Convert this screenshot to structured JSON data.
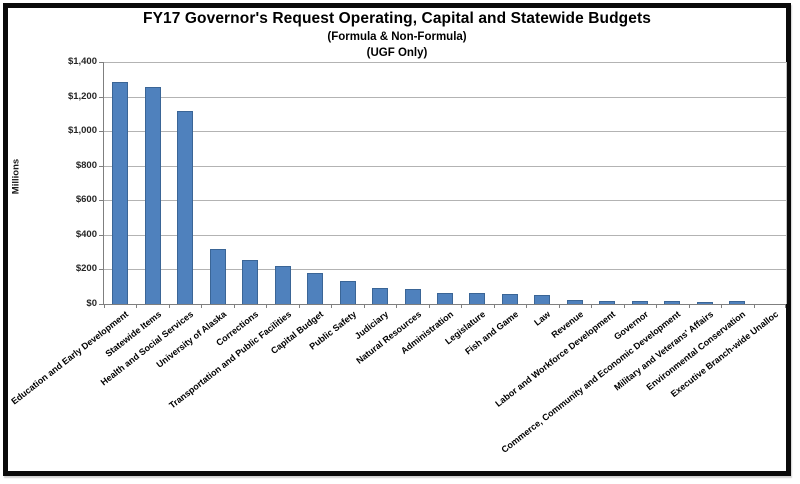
{
  "chart_data": {
    "type": "bar",
    "title": "FY17 Governor's Request Operating, Capital and Statewide Budgets",
    "subtitle1": "(Formula & Non-Formula)",
    "subtitle2": "(UGF Only)",
    "ylabel": "Millions",
    "ylim": [
      0,
      1400
    ],
    "ytick_interval": 200,
    "yticks": [
      {
        "value": 0,
        "label": "$0"
      },
      {
        "value": 200,
        "label": "$200"
      },
      {
        "value": 400,
        "label": "$400"
      },
      {
        "value": 600,
        "label": "$600"
      },
      {
        "value": 800,
        "label": "$800"
      },
      {
        "value": 1000,
        "label": "$1,000"
      },
      {
        "value": 1200,
        "label": "$1,200"
      },
      {
        "value": 1400,
        "label": "$1,400"
      }
    ],
    "grid": true,
    "legend": "none",
    "bar_color": "#4f81bd",
    "bar_border_color": "#3a6596",
    "units": "millions of dollars (UGF)",
    "categories": [
      "Education and Early Development",
      "Statewide Items",
      "Health and Social Services",
      "University of Alaska",
      "Corrections",
      "Transportation and Public Facilities",
      "Capital Budget",
      "Public Safety",
      "Judiciary",
      "Natural Resources",
      "Administration",
      "Legislature",
      "Fish and Game",
      "Law",
      "Revenue",
      "Labor and Workforce Development",
      "Governor",
      "Commerce, Community and Economic Development",
      "Military and Veterans' Affairs",
      "Environmental Conservation",
      "Executive Branch-wide Unalloc"
    ],
    "values": [
      1285,
      1255,
      1115,
      320,
      255,
      220,
      180,
      135,
      90,
      88,
      62,
      61,
      55,
      50,
      24,
      20,
      20,
      19,
      14,
      15,
      2
    ]
  }
}
